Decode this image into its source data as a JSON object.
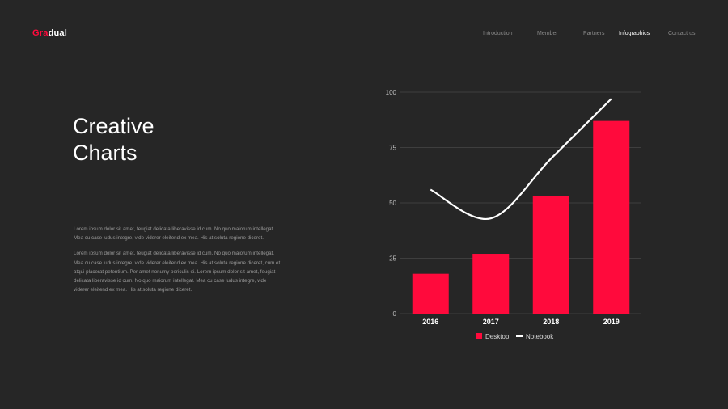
{
  "header": {
    "logo_accent": "Gra",
    "logo_rest": "dual",
    "nav": [
      {
        "label": "Introduction",
        "active": false
      },
      {
        "label": "Member",
        "active": false
      },
      {
        "label": "Partners",
        "active": false
      },
      {
        "label": "Infographics",
        "active": true
      },
      {
        "label": "Contact us",
        "active": false
      }
    ]
  },
  "main": {
    "title_line1": "Creative",
    "title_line2": "Charts",
    "paragraph1": "Lorem ipsum dolor sit amet, feugiat delicata liberavisse id cum. No quo maiorum intellegat. Mea cu case ludus integre, vide viderer eleifend ex mea. His at soluta regione diceret.",
    "paragraph2": "Lorem ipsum dolor sit amet, feugiat delicata liberavisse id cum. No quo maiorum intellegat. Mea cu case ludus integre, vide viderer eleifend ex mea. His at soluta regione diceret, cum et atqui placerat petentium. Per amet nonumy periculis ei. Lorem ipsum dolor sit amet, feugiat delicata liberavisse id cum. No quo maiorum intellegat. Mea cu case ludus integre, vide viderer eleifend ex mea. His at soluta regione diceret."
  },
  "colors": {
    "accent": "#ff0a3c",
    "background": "#262626",
    "line": "#ffffff"
  },
  "chart_data": {
    "type": "bar",
    "categories": [
      "2016",
      "2017",
      "2018",
      "2019"
    ],
    "series": [
      {
        "name": "Desktop",
        "type": "bar",
        "values": [
          18,
          27,
          53,
          87
        ]
      },
      {
        "name": "Notebook",
        "type": "line",
        "values": [
          56,
          43,
          70,
          97
        ]
      }
    ],
    "yticks": [
      0,
      25,
      50,
      75,
      100
    ],
    "ylim": [
      0,
      100
    ],
    "grid": true,
    "legend_position": "bottom"
  }
}
